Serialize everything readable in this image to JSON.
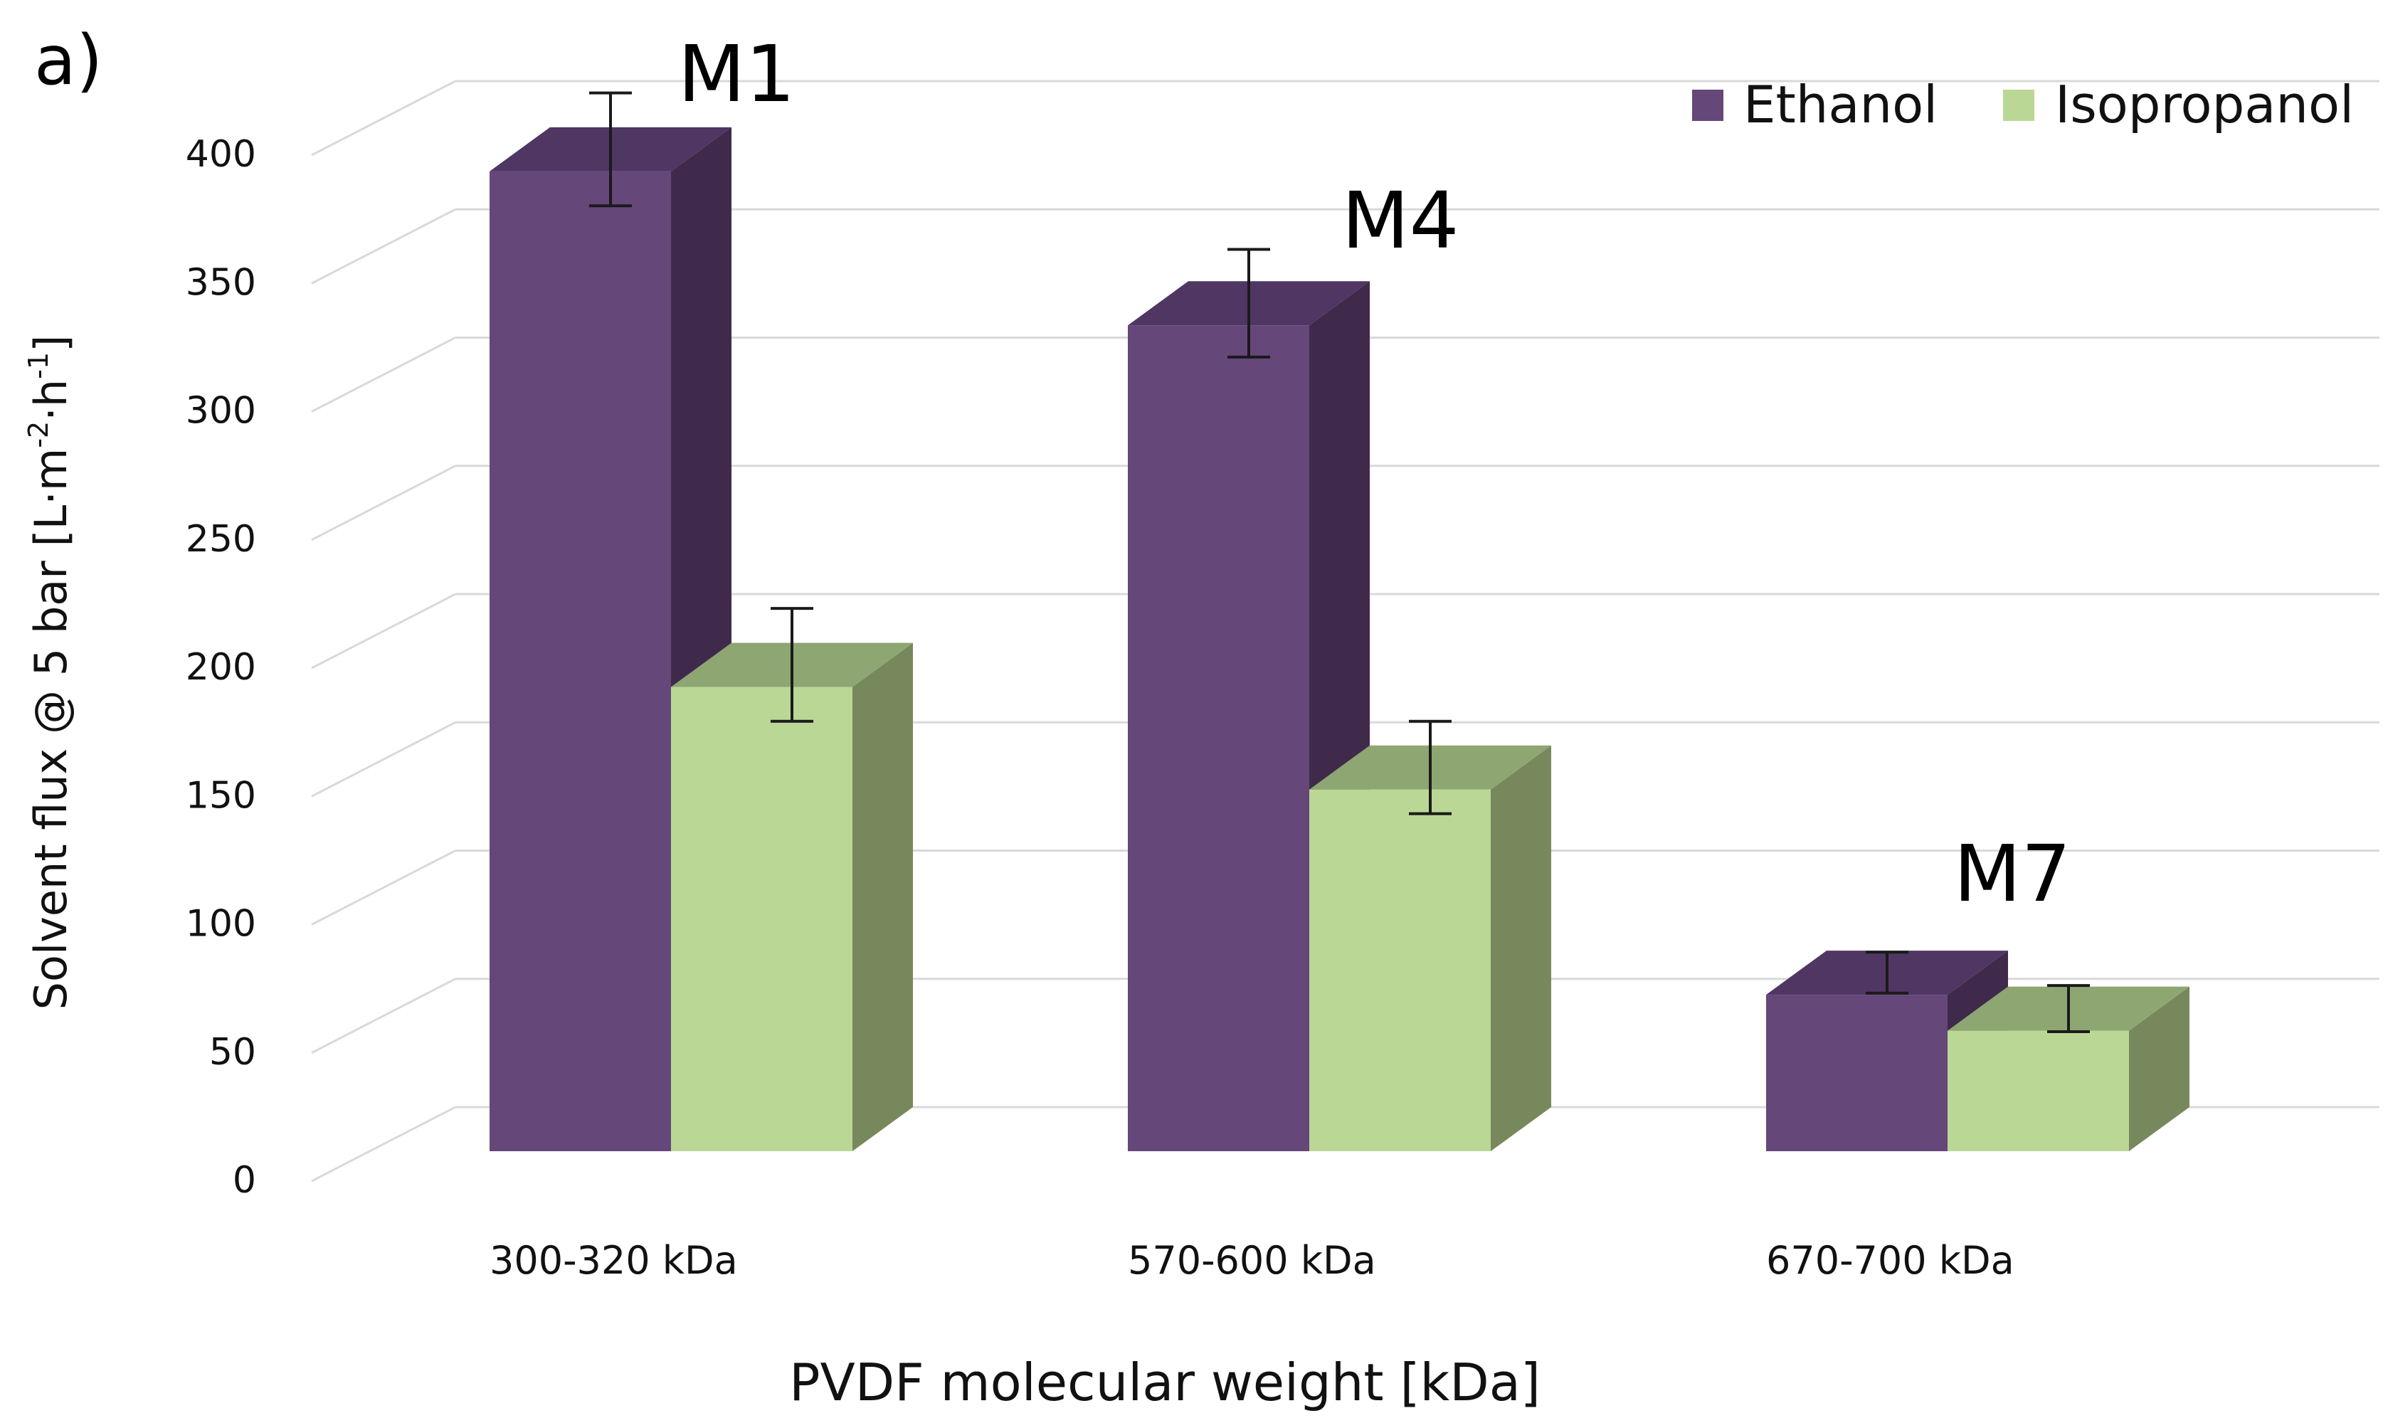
{
  "panel_label": "a)",
  "chart_data": {
    "type": "bar",
    "title": "",
    "xlabel": "PVDF molecular weight [kDa]",
    "ylabel": {
      "prefix": "Solvent flux @ 5 bar [L·m",
      "sup1": "-2",
      "mid": "·h",
      "sup2": "-1",
      "suffix": "]"
    },
    "ylim": [
      0,
      400
    ],
    "yticks": [
      0,
      50,
      100,
      150,
      200,
      250,
      300,
      350,
      400
    ],
    "grid": true,
    "legend_position": "top-right",
    "categories": [
      "300-320 kDa",
      "570-600 kDa",
      "670-700 kDa"
    ],
    "bar_labels": [
      "M1",
      "M4",
      "M7"
    ],
    "series": [
      {
        "name": "Ethanol",
        "color": "#65477a",
        "side_color": "#3f2a4c",
        "top_color": "#4f3663",
        "values": [
          382,
          322,
          61
        ],
        "errors": [
          22,
          21,
          8
        ]
      },
      {
        "name": "Isopropanol",
        "color": "#bad796",
        "side_color": "#78885d",
        "top_color": "#8ea672",
        "values": [
          181,
          141,
          47
        ],
        "errors": [
          22,
          18,
          9
        ]
      }
    ]
  }
}
